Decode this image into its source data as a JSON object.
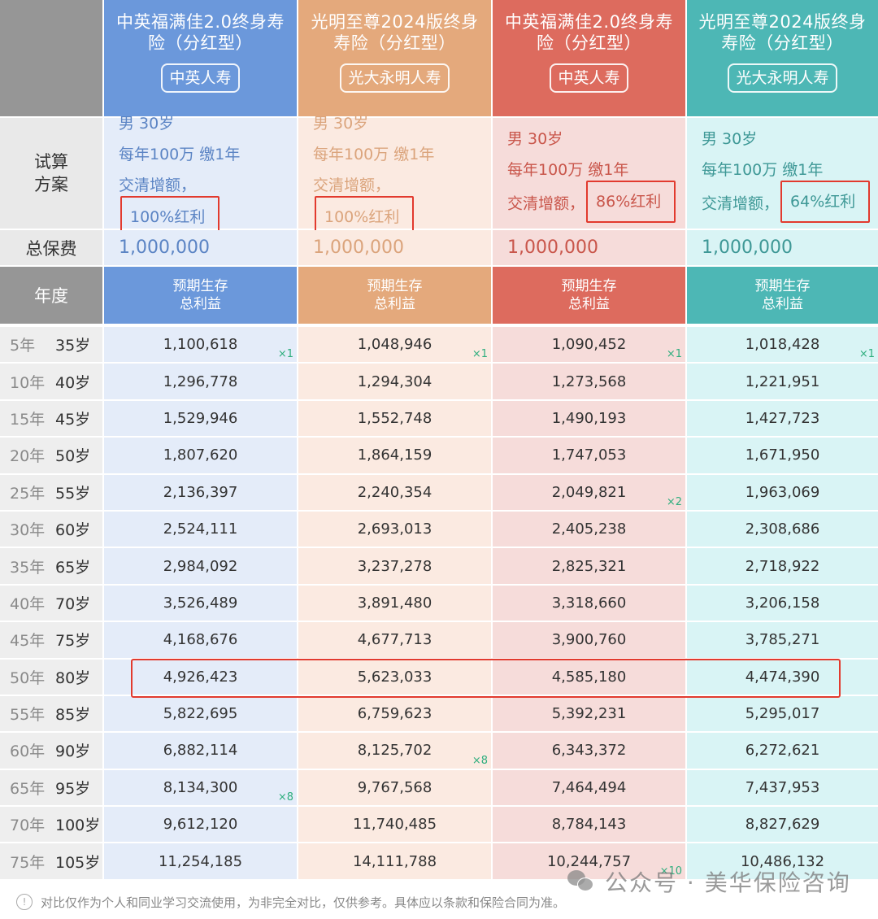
{
  "colors": {
    "header_gray": "#969696",
    "product_1": "#6b98db",
    "product_2": "#e4a97c",
    "product_3": "#dd6b5e",
    "product_4": "#4db7b5",
    "highlight_red": "#e23a2e",
    "multiplier_green": "#2fae7e"
  },
  "products": [
    {
      "name": "中英福满佳2.0终身寿险（分红型）",
      "name_line1": "中英福满佳2.0终身寿",
      "name_line2": "险（分红型）",
      "company": "中英人寿",
      "plan_gender_age": "男   30岁",
      "plan_payment": "每年100万 缴1年",
      "plan_option_prefix": "交清增额，",
      "plan_dividend": "100%红利",
      "total_premium": "1,000,000",
      "column_header_line1": "预期生存",
      "column_header_line2": "总利益"
    },
    {
      "name": "光明至尊2024版终身寿险（分红型）",
      "name_line1": "光明至尊2024版终身",
      "name_line2": "寿险（分红型）",
      "company": "光大永明人寿",
      "plan_gender_age": "男   30岁",
      "plan_payment": "每年100万 缴1年",
      "plan_option_prefix": "交清增额，",
      "plan_dividend": "100%红利",
      "total_premium": "1,000,000",
      "column_header_line1": "预期生存",
      "column_header_line2": "总利益"
    },
    {
      "name": "中英福满佳2.0终身寿险（分红型）",
      "name_line1": "中英福满佳2.0终身寿",
      "name_line2": "险（分红型）",
      "company": "中英人寿",
      "plan_gender_age": "男   30岁",
      "plan_payment": "每年100万 缴1年",
      "plan_option_prefix": "交清增额，",
      "plan_dividend": "86%红利",
      "total_premium": "1,000,000",
      "column_header_line1": "预期生存",
      "column_header_line2": "总利益"
    },
    {
      "name": "光明至尊2024版终身寿险（分红型）",
      "name_line1": "光明至尊2024版终身",
      "name_line2": "寿险（分红型）",
      "company": "光大永明人寿",
      "plan_gender_age": "男   30岁",
      "plan_payment": "每年100万 缴1年",
      "plan_option_prefix": "交清增额，",
      "plan_dividend": "64%红利",
      "total_premium": "1,000,000",
      "column_header_line1": "预期生存",
      "column_header_line2": "总利益"
    }
  ],
  "labels": {
    "plan_line1": "试算",
    "plan_line2": "方案",
    "total_premium": "总保费",
    "year": "年度"
  },
  "rows": [
    {
      "year": "5年",
      "age": "35岁",
      "values": [
        "1,100,618",
        "1,048,946",
        "1,090,452",
        "1,018,428"
      ],
      "multipliers": [
        "×1",
        "×1",
        "×1",
        "×1"
      ]
    },
    {
      "year": "10年",
      "age": "40岁",
      "values": [
        "1,296,778",
        "1,294,304",
        "1,273,568",
        "1,221,951"
      ],
      "multipliers": [
        "",
        "",
        "",
        ""
      ]
    },
    {
      "year": "15年",
      "age": "45岁",
      "values": [
        "1,529,946",
        "1,552,748",
        "1,490,193",
        "1,427,723"
      ],
      "multipliers": [
        "",
        "",
        "",
        ""
      ]
    },
    {
      "year": "20年",
      "age": "50岁",
      "values": [
        "1,807,620",
        "1,864,159",
        "1,747,053",
        "1,671,950"
      ],
      "multipliers": [
        "",
        "",
        "",
        ""
      ]
    },
    {
      "year": "25年",
      "age": "55岁",
      "values": [
        "2,136,397",
        "2,240,354",
        "2,049,821",
        "1,963,069"
      ],
      "multipliers": [
        "",
        "",
        "×2",
        ""
      ]
    },
    {
      "year": "30年",
      "age": "60岁",
      "values": [
        "2,524,111",
        "2,693,013",
        "2,405,238",
        "2,308,686"
      ],
      "multipliers": [
        "",
        "",
        "",
        ""
      ]
    },
    {
      "year": "35年",
      "age": "65岁",
      "values": [
        "2,984,092",
        "3,237,278",
        "2,825,321",
        "2,718,922"
      ],
      "multipliers": [
        "",
        "",
        "",
        ""
      ]
    },
    {
      "year": "40年",
      "age": "70岁",
      "values": [
        "3,526,489",
        "3,891,480",
        "3,318,660",
        "3,206,158"
      ],
      "multipliers": [
        "",
        "",
        "",
        ""
      ]
    },
    {
      "year": "45年",
      "age": "75岁",
      "values": [
        "4,168,676",
        "4,677,713",
        "3,900,760",
        "3,785,271"
      ],
      "multipliers": [
        "",
        "",
        "",
        ""
      ]
    },
    {
      "year": "50年",
      "age": "80岁",
      "values": [
        "4,926,423",
        "5,623,033",
        "4,585,180",
        "4,474,390"
      ],
      "multipliers": [
        "",
        "",
        "",
        ""
      ],
      "highlighted": true
    },
    {
      "year": "55年",
      "age": "85岁",
      "values": [
        "5,822,695",
        "6,759,623",
        "5,392,231",
        "5,295,017"
      ],
      "multipliers": [
        "",
        "",
        "",
        ""
      ]
    },
    {
      "year": "60年",
      "age": "90岁",
      "values": [
        "6,882,114",
        "8,125,702",
        "6,343,372",
        "6,272,621"
      ],
      "multipliers": [
        "",
        "×8",
        "",
        ""
      ]
    },
    {
      "year": "65年",
      "age": "95岁",
      "values": [
        "8,134,300",
        "9,767,568",
        "7,464,494",
        "7,437,953"
      ],
      "multipliers": [
        "×8",
        "",
        "",
        ""
      ]
    },
    {
      "year": "70年",
      "age": "100岁",
      "values": [
        "9,612,120",
        "11,740,485",
        "8,784,143",
        "8,827,629"
      ],
      "multipliers": [
        "",
        "",
        "",
        ""
      ]
    },
    {
      "year": "75年",
      "age": "105岁",
      "values": [
        "11,254,185",
        "14,111,788",
        "10,244,757",
        "10,486,132"
      ],
      "multipliers": [
        "",
        "",
        "×10",
        ""
      ]
    }
  ],
  "footer": {
    "icon": "info-icon",
    "disclaimer": "对比仅作为个人和同业学习交流使用，为非完全对比，仅供参考。具体应以条款和保险合同为准。"
  },
  "watermark": {
    "icon": "wechat-icon",
    "text": "公众号 · 美华保险咨询"
  }
}
